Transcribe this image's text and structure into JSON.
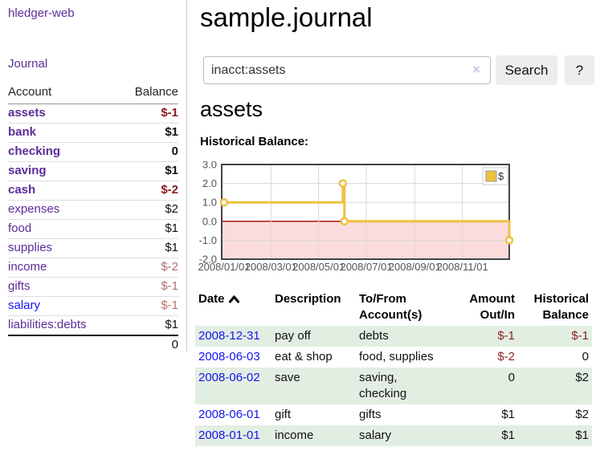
{
  "sidebar": {
    "brand": "hledger-web",
    "nav_journal": "Journal",
    "account_table": {
      "headers": {
        "account": "Account",
        "balance": "Balance"
      },
      "rows": [
        {
          "account": "assets",
          "depth": 1,
          "bold": true,
          "balance": "$-1",
          "neg": "strong"
        },
        {
          "account": "bank",
          "depth": 2,
          "bold": true,
          "balance": "$1",
          "neg": "none"
        },
        {
          "account": "checking",
          "depth": 3,
          "bold": true,
          "balance": "0",
          "neg": "none"
        },
        {
          "account": "saving",
          "depth": 3,
          "bold": true,
          "balance": "$1",
          "neg": "none"
        },
        {
          "account": "cash",
          "depth": 2,
          "bold": true,
          "balance": "$-2",
          "neg": "strong"
        },
        {
          "account": "expenses",
          "depth": 1,
          "bold": false,
          "balance": "$2",
          "neg": "none"
        },
        {
          "account": "food",
          "depth": 2,
          "bold": false,
          "balance": "$1",
          "neg": "none"
        },
        {
          "account": "supplies",
          "depth": 2,
          "bold": false,
          "balance": "$1",
          "neg": "none"
        },
        {
          "account": "income",
          "depth": 1,
          "bold": false,
          "balance": "$-2",
          "neg": "soft"
        },
        {
          "account": "gifts",
          "depth": 2,
          "bold": false,
          "balance": "$-1",
          "neg": "soft"
        },
        {
          "account": "salary",
          "depth": 2,
          "bold": false,
          "balance": "$-1",
          "neg": "soft",
          "link_color": "blue"
        },
        {
          "account": "liabilities:debts",
          "depth": 1,
          "bold": false,
          "balance": "$1",
          "neg": "none"
        }
      ],
      "total": "0"
    }
  },
  "header": {
    "title": "sample.journal"
  },
  "search": {
    "query": "inacct:assets",
    "clear_icon": "×",
    "search_button": "Search",
    "help_button": "?"
  },
  "main": {
    "account_heading": "assets",
    "chart_label": "Historical Balance:"
  },
  "chart_data": {
    "type": "line",
    "title": "Historical Balance",
    "step": true,
    "grid": true,
    "legend": [
      {
        "label": "$",
        "color": "#edc240"
      }
    ],
    "legend_position": "top-right",
    "ylim": [
      -2,
      3
    ],
    "y_ticks": [
      {
        "label": "3.0",
        "value": 3
      },
      {
        "label": "2.0",
        "value": 2
      },
      {
        "label": "1.0",
        "value": 1
      },
      {
        "label": "0.0",
        "value": 0
      },
      {
        "label": "-1.0",
        "value": -1
      },
      {
        "label": "-2.0",
        "value": -2
      }
    ],
    "x_ticks": [
      {
        "label": "2008/01/01",
        "day": 0
      },
      {
        "label": "2008/03/01",
        "day": 60
      },
      {
        "label": "2008/05/01",
        "day": 121
      },
      {
        "label": "2008/07/01",
        "day": 182
      },
      {
        "label": "2008/09/01",
        "day": 244
      },
      {
        "label": "2008/11/01",
        "day": 305
      }
    ],
    "x_range_days": [
      0,
      365
    ],
    "series": [
      {
        "name": "$",
        "color": "#edc240",
        "points": [
          {
            "date": "2008-01-01",
            "day": 0,
            "value": 1
          },
          {
            "date": "2008-06-01",
            "day": 152,
            "value": 2
          },
          {
            "date": "2008-06-03",
            "day": 154,
            "value": 0
          },
          {
            "date": "2008-12-31",
            "day": 365,
            "value": -1
          }
        ]
      }
    ],
    "negative_region_color": "#fbdcdc",
    "zero_line_color": "#a40000"
  },
  "register": {
    "headers": {
      "date": "Date",
      "description": "Description",
      "accounts": "To/From Account(s)",
      "amount": "Amount Out/In",
      "balance": "Historical Balance"
    },
    "rows": [
      {
        "date": "2008-12-31",
        "description": "pay off",
        "accounts": "debts",
        "amount": "$-1",
        "amount_negative": true,
        "balance": "$-1",
        "balance_negative": true
      },
      {
        "date": "2008-06-03",
        "description": "eat & shop",
        "accounts": "food, supplies",
        "amount": "$-2",
        "amount_negative": true,
        "balance": "0",
        "balance_negative": false
      },
      {
        "date": "2008-06-02",
        "description": "save",
        "accounts": "saving, checking",
        "amount": "0",
        "amount_negative": false,
        "balance": "$2",
        "balance_negative": false
      },
      {
        "date": "2008-06-01",
        "description": "gift",
        "accounts": "gifts",
        "amount": "$1",
        "amount_negative": false,
        "balance": "$2",
        "balance_negative": false
      },
      {
        "date": "2008-01-01",
        "description": "income",
        "accounts": "salary",
        "amount": "$1",
        "amount_negative": false,
        "balance": "$1",
        "balance_negative": false
      }
    ]
  }
}
